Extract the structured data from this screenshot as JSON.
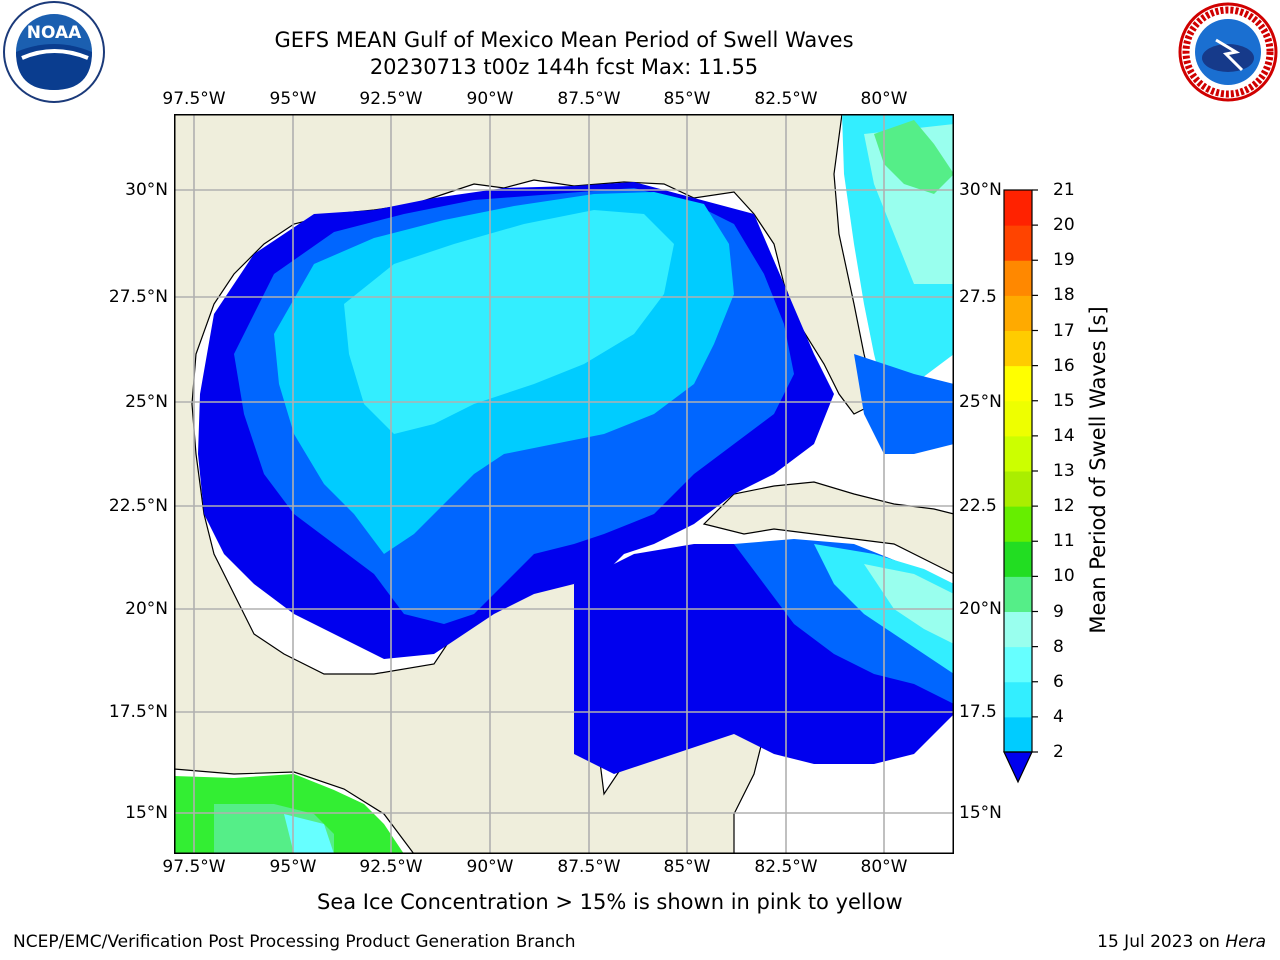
{
  "header": {
    "title_line1": "GEFS MEAN Gulf of Mexico Mean Period of Swell Waves",
    "title_line2": "20230713 t00z 144h fcst   Max: 11.55"
  },
  "map": {
    "longitude_labels": [
      "97.5°W",
      "95°W",
      "92.5°W",
      "90°W",
      "87.5°W",
      "85°W",
      "82.5°W",
      "80°W"
    ],
    "latitude_labels_left": [
      "30°N",
      "27.5°N",
      "25°N",
      "22.5°N",
      "20°N",
      "17.5°N",
      "15°N"
    ],
    "latitude_labels_right": [
      "30°N",
      "27.5",
      "25°N",
      "22.5",
      "20°N",
      "17.5",
      "15°N"
    ],
    "land_color": "#efeedc",
    "ocean_color": "#ffffff",
    "grid_color": "#b0b0b0"
  },
  "colorbar": {
    "label": "Mean Period of Swell Waves [s]",
    "ticks": [
      "2",
      "4",
      "6",
      "8",
      "9",
      "10",
      "11",
      "12",
      "13",
      "14",
      "15",
      "16",
      "17",
      "18",
      "19",
      "20",
      "21"
    ],
    "colors": [
      "#0066ff",
      "#00ccff",
      "#33eeff",
      "#66ffff",
      "#99ffee",
      "#55ee88",
      "#22dd22",
      "#66ee00",
      "#aaee00",
      "#ccff00",
      "#eeff00",
      "#ffff00",
      "#ffcc00",
      "#ffaa00",
      "#ff8800",
      "#ff4400",
      "#ff2200",
      "#ff0000"
    ],
    "under_color": "#0000ee"
  },
  "footer": {
    "note": "Sea Ice Concentration > 15% is shown in pink to yellow",
    "left": "NCEP/EMC/Verification Post Processing Product Generation Branch",
    "right_date": "15 Jul 2023 on ",
    "right_host": "Hera"
  },
  "logos": {
    "noaa_text": "NOAA",
    "nws_text": "NATIONAL WEATHER SERVICE"
  }
}
